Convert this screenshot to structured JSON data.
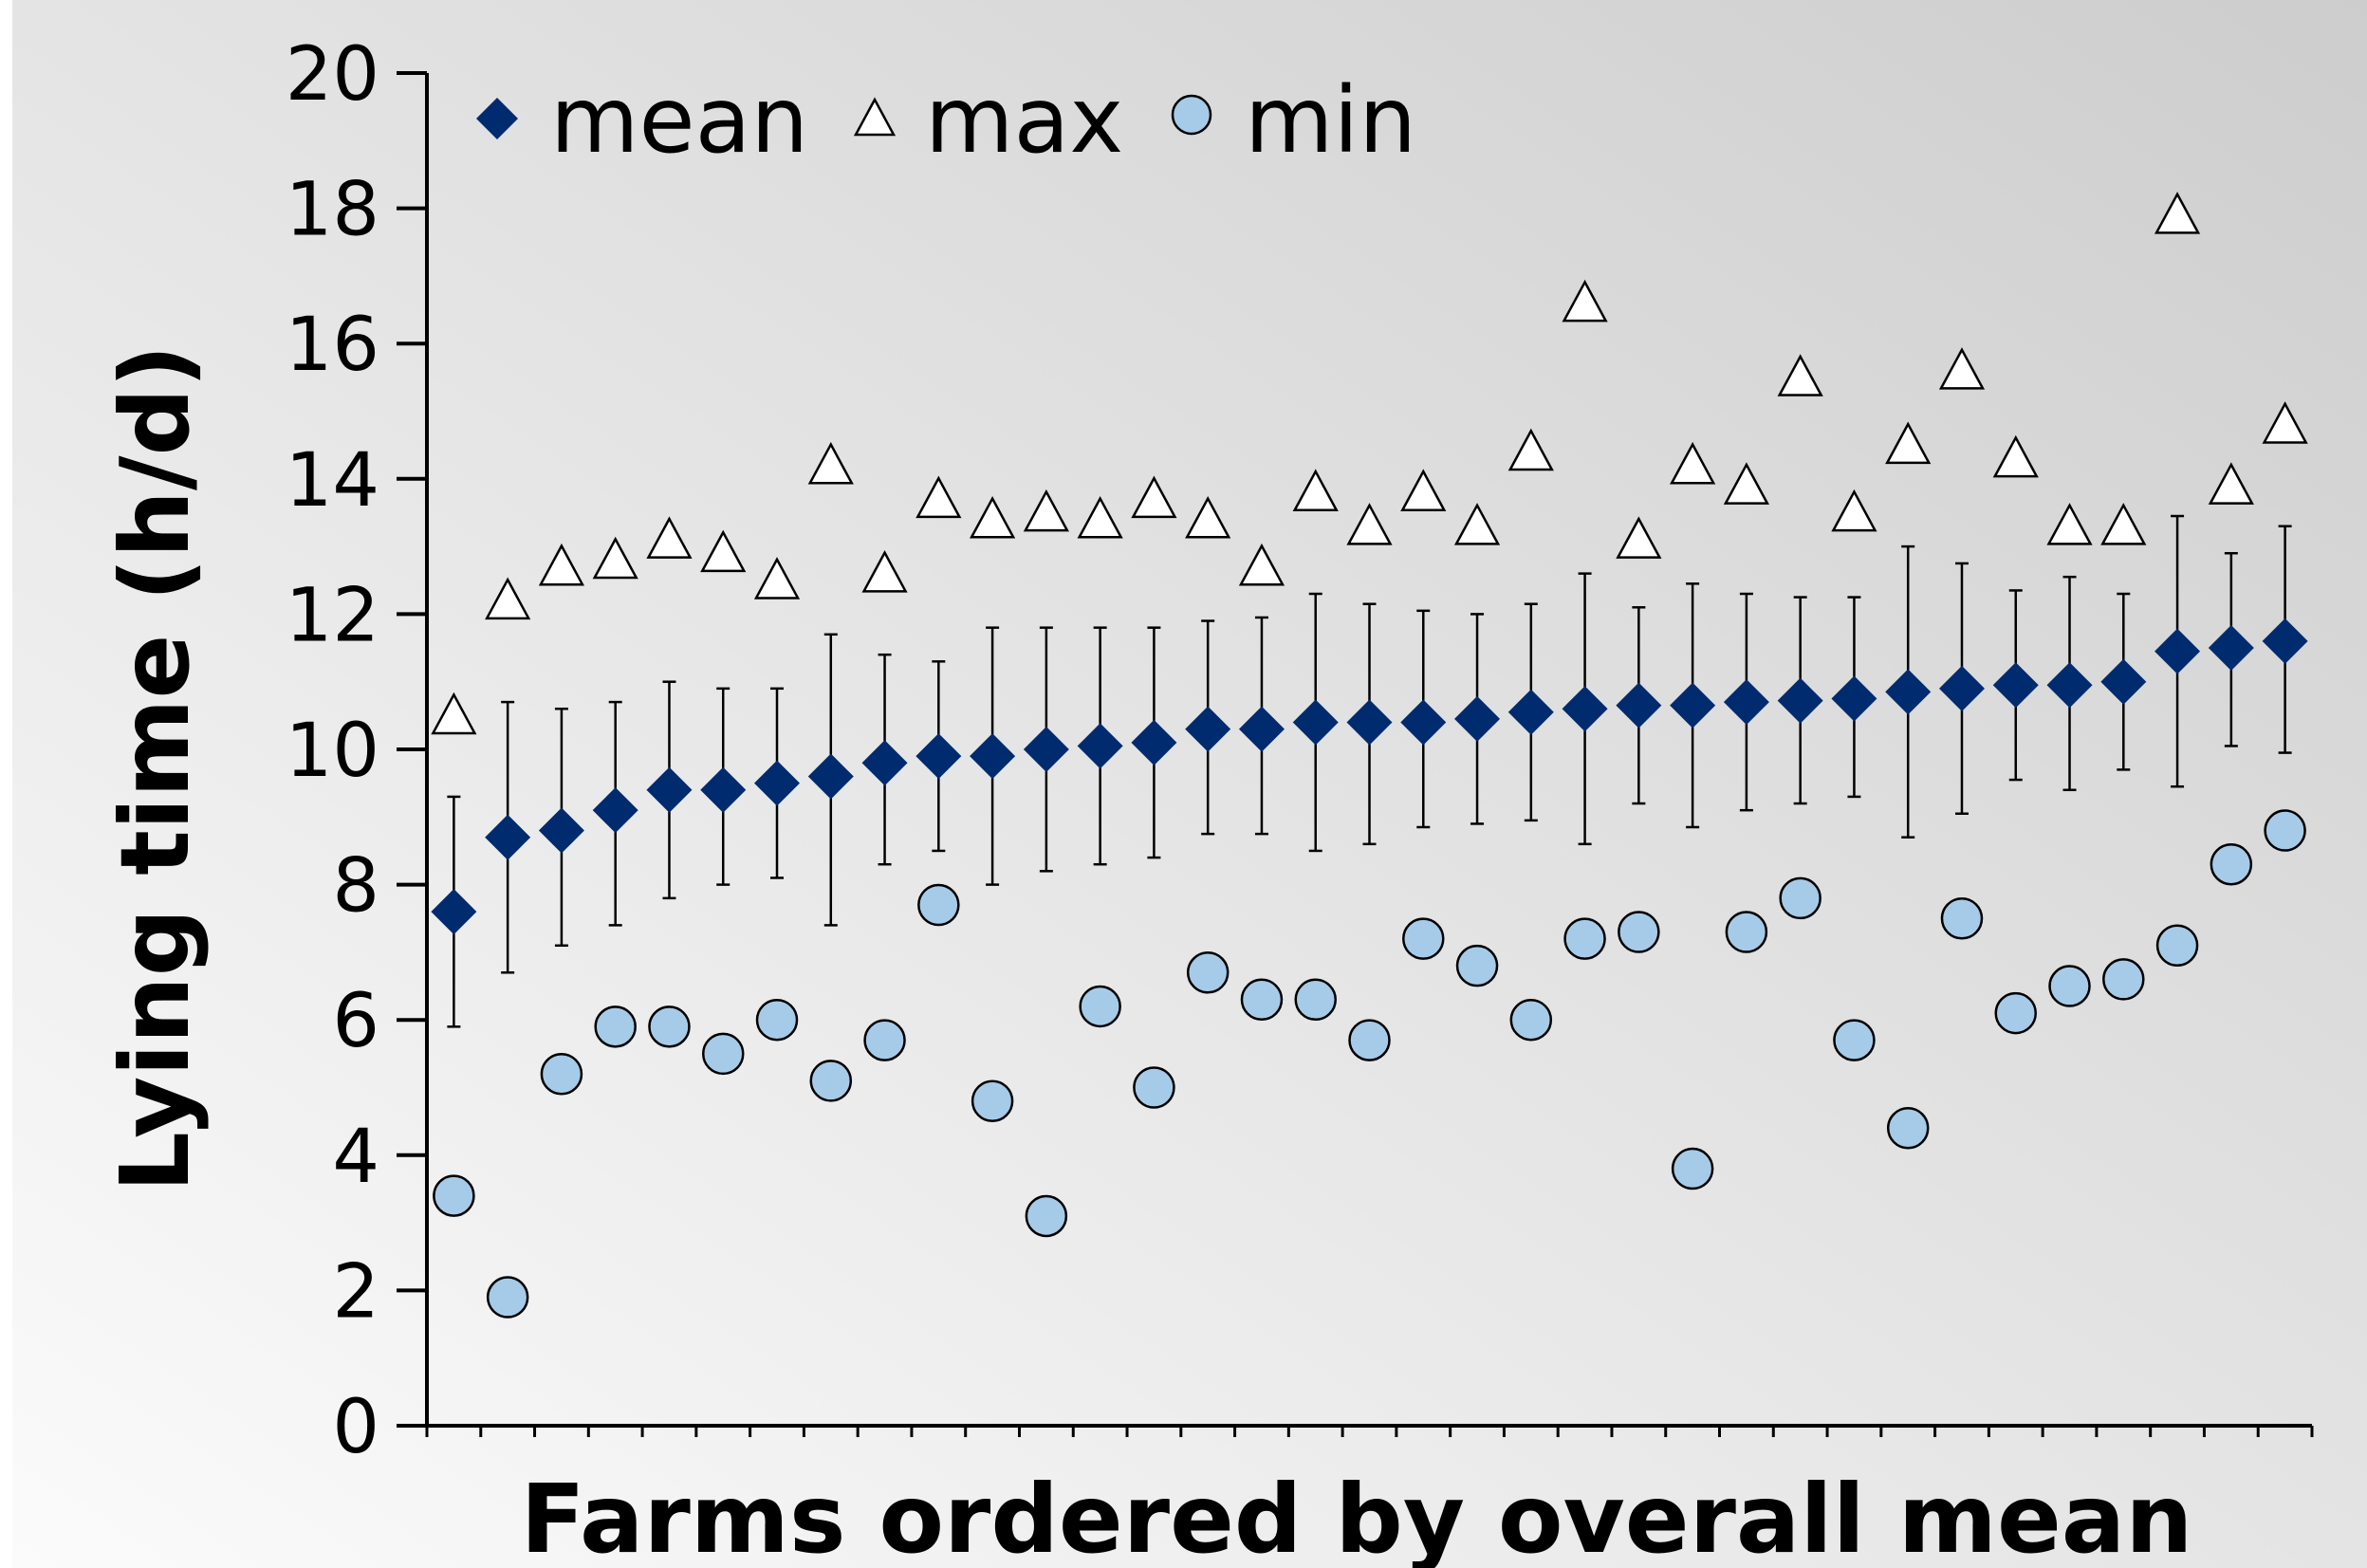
{
  "chart_data": {
    "type": "scatter",
    "xlabel": "Farms ordered by overall mean",
    "ylabel": "Lying time (h/d)",
    "ylim": [
      0,
      20
    ],
    "yticks": [
      0,
      2,
      4,
      6,
      8,
      10,
      12,
      14,
      16,
      18,
      20
    ],
    "grid": false,
    "legend_position": "top-left",
    "x": [
      1,
      2,
      3,
      4,
      5,
      6,
      7,
      8,
      9,
      10,
      11,
      12,
      13,
      14,
      15,
      16,
      17,
      18,
      19,
      20,
      21,
      22,
      23,
      24,
      25,
      26,
      27,
      28,
      29,
      30,
      31,
      32,
      33,
      34,
      35
    ],
    "series": [
      {
        "name": "mean",
        "marker": "diamond",
        "color": "#002b6e",
        "values": [
          7.6,
          8.7,
          8.8,
          9.1,
          9.4,
          9.4,
          9.5,
          9.6,
          9.8,
          9.9,
          9.9,
          10.0,
          10.05,
          10.1,
          10.3,
          10.3,
          10.4,
          10.4,
          10.4,
          10.45,
          10.55,
          10.6,
          10.65,
          10.65,
          10.7,
          10.72,
          10.75,
          10.85,
          10.9,
          10.95,
          10.95,
          11.0,
          11.45,
          11.5,
          11.6
        ],
        "error_upper": [
          9.3,
          10.7,
          10.6,
          10.7,
          11.0,
          10.9,
          10.9,
          11.7,
          11.4,
          11.3,
          11.8,
          11.8,
          11.8,
          11.8,
          11.9,
          11.95,
          12.3,
          12.15,
          12.05,
          12.0,
          12.15,
          12.6,
          12.1,
          12.45,
          12.3,
          12.25,
          12.25,
          13.0,
          12.75,
          12.35,
          12.55,
          12.3,
          13.45,
          12.9,
          13.3
        ],
        "error_lower": [
          5.9,
          6.7,
          7.1,
          7.4,
          7.8,
          8.0,
          8.1,
          7.4,
          8.3,
          8.5,
          8.0,
          8.2,
          8.3,
          8.4,
          8.75,
          8.75,
          8.5,
          8.6,
          8.85,
          8.9,
          8.95,
          8.6,
          9.2,
          8.85,
          9.1,
          9.2,
          9.3,
          8.7,
          9.05,
          9.55,
          9.4,
          9.7,
          9.45,
          10.05,
          9.95
        ]
      },
      {
        "name": "max",
        "marker": "triangle",
        "color": "#ffffff",
        "values": [
          10.5,
          12.2,
          12.7,
          12.8,
          13.1,
          12.9,
          12.5,
          14.2,
          12.6,
          13.7,
          13.4,
          13.5,
          13.4,
          13.7,
          13.4,
          12.7,
          13.8,
          13.3,
          13.8,
          13.3,
          14.4,
          16.6,
          13.1,
          14.2,
          13.9,
          15.5,
          13.5,
          14.5,
          15.6,
          14.3,
          13.3,
          13.3,
          17.9,
          13.9,
          14.8
        ]
      },
      {
        "name": "min",
        "marker": "circle",
        "color": "#a6cbe8",
        "values": [
          3.4,
          1.9,
          5.2,
          5.9,
          5.9,
          5.5,
          6.0,
          5.1,
          5.7,
          7.7,
          4.8,
          3.1,
          6.2,
          5.0,
          6.7,
          6.3,
          6.3,
          5.7,
          7.2,
          6.8,
          6.0,
          7.2,
          7.3,
          3.8,
          7.3,
          7.8,
          5.7,
          4.4,
          7.5,
          6.1,
          6.5,
          6.6,
          7.1,
          8.3,
          8.8
        ]
      }
    ]
  }
}
